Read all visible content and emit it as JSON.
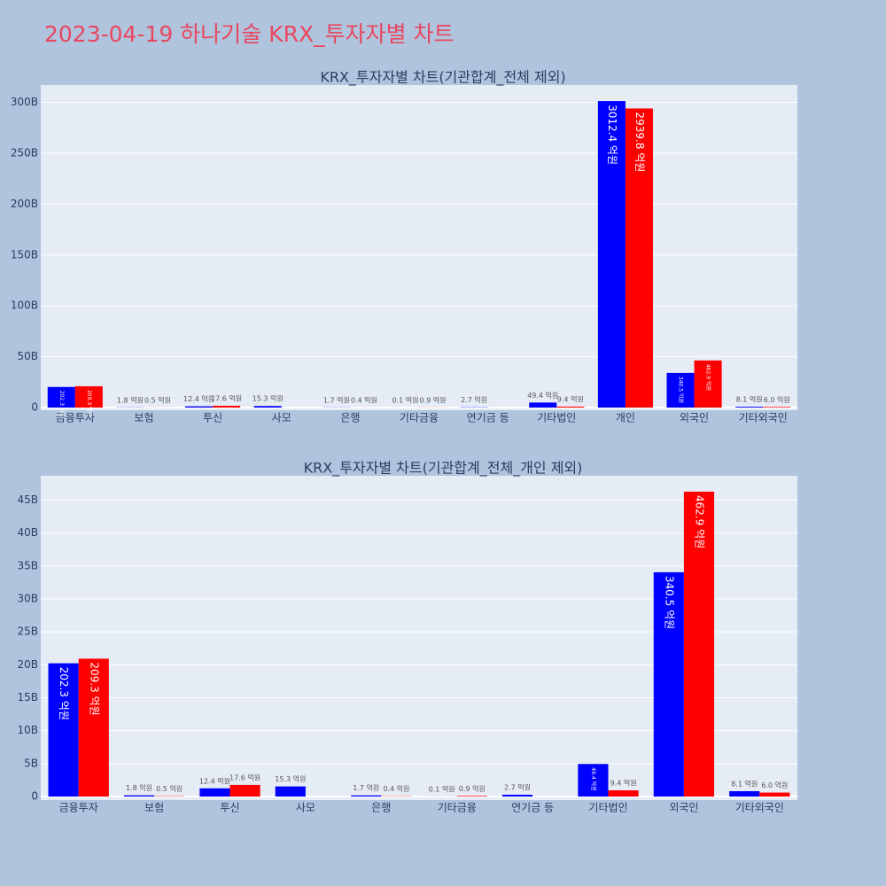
{
  "title": "2023-04-19 하나기술 KRX_투자자별 차트",
  "chart_data": [
    {
      "type": "bar",
      "title": "KRX_투자자별 차트(기관합계_전체 제외)",
      "categories": [
        "금융투자",
        "보험",
        "투신",
        "사모",
        "은행",
        "기타금융",
        "연기금 등",
        "기타법인",
        "개인",
        "외국인",
        "기타외국인"
      ],
      "series": [
        {
          "color": "#0000ff",
          "values": [
            20230000000,
            180000000,
            1240000000,
            1530000000,
            170000000,
            10000000,
            270000000,
            4940000000,
            301240000000,
            34050000000,
            810000000
          ],
          "value_labels": [
            "202.3 억원",
            "1.8 억원",
            "12.4 억원",
            "15.3 억원",
            "1.7 억원",
            "0.1 억원",
            "2.7 억원",
            "49.4 억원",
            "3012.4 억원",
            "340.5 억원",
            "8.1 억원"
          ]
        },
        {
          "color": "#ff0000",
          "values": [
            20930000000,
            50000000,
            1760000000,
            null,
            40000000,
            90000000,
            null,
            940000000,
            293980000000,
            46290000000,
            600000000
          ],
          "value_labels": [
            "209.3 억원",
            "0.5 억원",
            "17.6 억원",
            null,
            "0.4 억원",
            "0.9 억원",
            null,
            "9.4 억원",
            "2939.8 억원",
            "462.9 억원",
            "6.0 억원"
          ]
        }
      ],
      "ylim": [
        0,
        317000000000
      ],
      "yticks": [
        0,
        {
          "value": 50000000000,
          "label": "50B"
        },
        {
          "value": 100000000000,
          "label": "100B"
        },
        {
          "value": 150000000000,
          "label": "150B"
        },
        {
          "value": 200000000000,
          "label": "200B"
        },
        {
          "value": 250000000000,
          "label": "250B"
        },
        {
          "value": 300000000000,
          "label": "300B"
        }
      ],
      "grid": true
    },
    {
      "type": "bar",
      "title": "KRX_투자자별 차트(기관합계_전체_개인 제외)",
      "categories": [
        "금융투자",
        "보험",
        "투신",
        "사모",
        "은행",
        "기타금융",
        "연기금 등",
        "기타법인",
        "외국인",
        "기타외국인"
      ],
      "series": [
        {
          "color": "#0000ff",
          "values": [
            20230000000,
            180000000,
            1240000000,
            1530000000,
            170000000,
            10000000,
            270000000,
            4940000000,
            34050000000,
            810000000
          ],
          "value_labels": [
            "202.3 억원",
            "1.8 억원",
            "12.4 억원",
            "15.3 억원",
            "1.7 억원",
            "0.1 억원",
            "2.7 억원",
            "49.4 억원",
            "340.5 억원",
            "8.1 억원"
          ]
        },
        {
          "color": "#ff0000",
          "values": [
            20930000000,
            50000000,
            1760000000,
            null,
            40000000,
            90000000,
            null,
            940000000,
            46290000000,
            600000000
          ],
          "value_labels": [
            "209.3 억원",
            "0.5 억원",
            "17.6 억원",
            null,
            "0.4 억원",
            "0.9 억원",
            null,
            "9.4 억원",
            "462.9 억원",
            "6.0 억원"
          ]
        }
      ],
      "ylim": [
        0,
        48700000000
      ],
      "yticks": [
        0,
        {
          "value": 5000000000,
          "label": "5B"
        },
        {
          "value": 10000000000,
          "label": "10B"
        },
        {
          "value": 15000000000,
          "label": "15B"
        },
        {
          "value": 20000000000,
          "label": "20B"
        },
        {
          "value": 25000000000,
          "label": "25B"
        },
        {
          "value": 30000000000,
          "label": "30B"
        },
        {
          "value": 35000000000,
          "label": "35B"
        },
        {
          "value": 40000000000,
          "label": "40B"
        },
        {
          "value": 45000000000,
          "label": "45B"
        }
      ],
      "grid": true
    }
  ]
}
